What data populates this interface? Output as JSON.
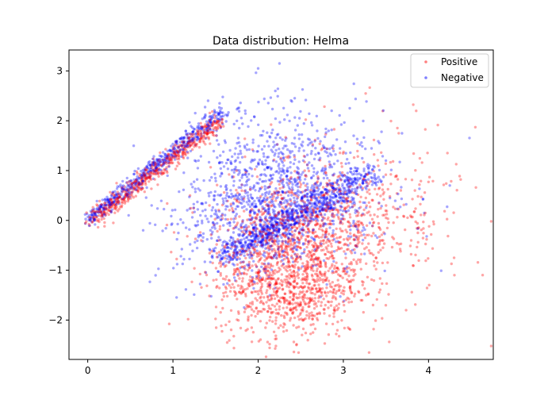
{
  "chart_data": {
    "type": "scatter",
    "title": "Data distribution: Helma",
    "xlabel": "",
    "ylabel": "",
    "xlim": [
      -0.22,
      4.76
    ],
    "ylim": [
      -2.79,
      3.42
    ],
    "xticks": [
      0,
      1,
      2,
      3,
      4
    ],
    "yticks": [
      -2,
      -1,
      0,
      1,
      2,
      3
    ],
    "grid": false,
    "legend": {
      "position": "top-right"
    },
    "series": [
      {
        "name": "Positive",
        "color": "#ff0000",
        "marker_alpha": 0.35,
        "approx_point_count": 2500,
        "clusters": [
          {
            "shape": "band",
            "from": [
              0.05,
              0.0
            ],
            "to": [
              1.55,
              2.0
            ],
            "width": 0.09,
            "share": 0.22
          },
          {
            "shape": "blob",
            "center": [
              2.35,
              -1.25
            ],
            "spread": [
              0.42,
              0.55
            ],
            "share": 0.38
          },
          {
            "shape": "blob",
            "center": [
              2.55,
              -0.15
            ],
            "spread": [
              0.55,
              0.55
            ],
            "share": 0.28
          },
          {
            "shape": "blob",
            "center": [
              3.2,
              0.2
            ],
            "spread": [
              0.6,
              0.9
            ],
            "share": 0.12
          }
        ],
        "sample_points": [
          [
            2.45,
            -2.5
          ],
          [
            3.65,
            1.75
          ],
          [
            4.55,
            1.87
          ],
          [
            4.3,
            -0.75
          ],
          [
            2.2,
            -2.38
          ],
          [
            2.6,
            -1.92
          ],
          [
            0.3,
            -0.05
          ],
          [
            1.2,
            0.5
          ]
        ]
      },
      {
        "name": "Negative",
        "color": "#0000ff",
        "marker_alpha": 0.35,
        "approx_point_count": 2500,
        "clusters": [
          {
            "shape": "band",
            "from": [
              0.0,
              0.0
            ],
            "to": [
              1.6,
              2.2
            ],
            "width": 0.08,
            "share": 0.2
          },
          {
            "shape": "band",
            "from": [
              1.6,
              -0.7
            ],
            "to": [
              3.3,
              0.9
            ],
            "width": 0.14,
            "share": 0.25
          },
          {
            "shape": "blob",
            "center": [
              2.4,
              0.7
            ],
            "spread": [
              0.55,
              0.75
            ],
            "share": 0.35
          },
          {
            "shape": "blob",
            "center": [
              1.9,
              0.0
            ],
            "spread": [
              0.5,
              0.6
            ],
            "share": 0.2
          }
        ],
        "sample_points": [
          [
            2.25,
            3.15
          ],
          [
            2.0,
            3.05
          ],
          [
            4.25,
            0.7
          ],
          [
            3.95,
            0.15
          ],
          [
            0.65,
            -0.2
          ],
          [
            3.5,
            1.2
          ],
          [
            1.3,
            -0.3
          ]
        ]
      }
    ]
  }
}
